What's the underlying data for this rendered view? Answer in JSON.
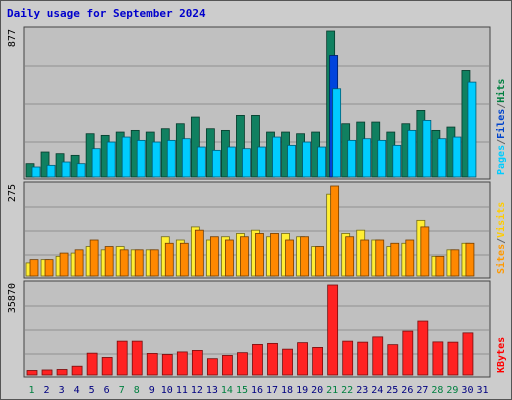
{
  "title": "Daily usage for September 2024",
  "chart_data": [
    {
      "type": "bar",
      "panel": "top",
      "ymax_label": "877",
      "ylim": [
        0,
        877
      ],
      "right_label": [
        {
          "text": "Pages",
          "color": "#00ccff"
        },
        {
          "text": "/",
          "color": "#666666"
        },
        {
          "text": "Files",
          "color": "#0044cc"
        },
        {
          "text": "/",
          "color": "#666666"
        },
        {
          "text": "Hits",
          "color": "#008040"
        }
      ],
      "series": [
        {
          "name": "Hits",
          "color": "#108060",
          "values": [
            80,
            150,
            140,
            130,
            260,
            250,
            270,
            280,
            270,
            290,
            320,
            360,
            290,
            280,
            370,
            370,
            270,
            270,
            260,
            270,
            877,
            320,
            330,
            330,
            270,
            320,
            400,
            280,
            300,
            640
          ]
        },
        {
          "name": "Files",
          "color": "#0044dd",
          "values": [
            0,
            0,
            0,
            0,
            0,
            0,
            0,
            0,
            0,
            0,
            0,
            0,
            0,
            0,
            0,
            0,
            0,
            0,
            0,
            0,
            730,
            0,
            0,
            0,
            0,
            0,
            0,
            0,
            0,
            0
          ]
        },
        {
          "name": "Pages",
          "color": "#00ccff",
          "values": [
            60,
            70,
            90,
            80,
            170,
            210,
            240,
            220,
            210,
            220,
            230,
            180,
            160,
            180,
            170,
            180,
            240,
            190,
            210,
            180,
            530,
            220,
            230,
            220,
            190,
            280,
            340,
            230,
            240,
            570
          ]
        }
      ]
    },
    {
      "type": "bar",
      "panel": "middle",
      "ymax_label": "275",
      "ylim": [
        0,
        275
      ],
      "right_label": [
        {
          "text": "Sites",
          "color": "#ff9900"
        },
        {
          "text": "/",
          "color": "#666666"
        },
        {
          "text": "Visits",
          "color": "#ffcc00"
        }
      ],
      "series": [
        {
          "name": "Visits",
          "color": "#ffee33",
          "values": [
            40,
            50,
            60,
            70,
            90,
            80,
            90,
            80,
            80,
            120,
            110,
            150,
            110,
            120,
            130,
            140,
            120,
            130,
            120,
            90,
            250,
            130,
            140,
            110,
            90,
            100,
            170,
            60,
            80,
            100
          ]
        },
        {
          "name": "Sites",
          "color": "#ff8800",
          "values": [
            50,
            50,
            70,
            80,
            110,
            90,
            80,
            80,
            80,
            100,
            100,
            140,
            120,
            110,
            120,
            130,
            130,
            110,
            120,
            90,
            275,
            120,
            110,
            110,
            100,
            110,
            150,
            60,
            80,
            100
          ]
        }
      ]
    },
    {
      "type": "bar",
      "panel": "bottom",
      "ymax_label": "35870",
      "ylim": [
        0,
        35870
      ],
      "right_label": [
        {
          "text": "KBytes",
          "color": "#ff0000"
        }
      ],
      "series": [
        {
          "name": "KBytes",
          "color": "#ff2222",
          "values": [
            1800,
            2000,
            2200,
            3500,
            8700,
            7000,
            13500,
            13500,
            8600,
            8200,
            9200,
            9800,
            6500,
            7800,
            8900,
            12200,
            12600,
            10300,
            12900,
            11000,
            35870,
            13500,
            13100,
            15200,
            12100,
            17500,
            21500,
            13200,
            13100,
            16800
          ]
        }
      ]
    }
  ],
  "x_axis": {
    "days": [
      "1",
      "2",
      "3",
      "4",
      "5",
      "6",
      "7",
      "8",
      "9",
      "10",
      "11",
      "12",
      "13",
      "14",
      "15",
      "16",
      "17",
      "18",
      "19",
      "20",
      "21",
      "22",
      "23",
      "24",
      "25",
      "26",
      "27",
      "28",
      "29",
      "30",
      "31"
    ],
    "weekend_color": "#008040",
    "weekday_color": "#000080",
    "weekend_days": [
      "1",
      "7",
      "8",
      "14",
      "15",
      "21",
      "22",
      "28",
      "29"
    ]
  }
}
